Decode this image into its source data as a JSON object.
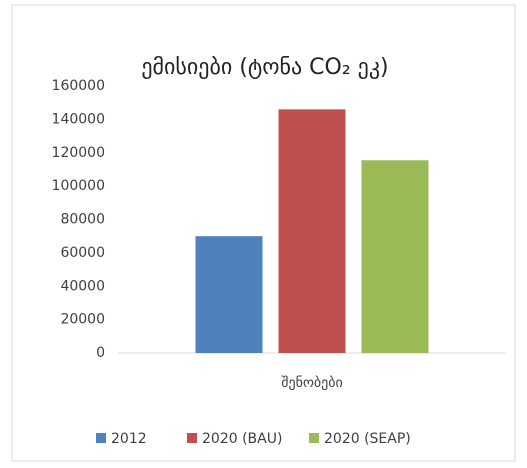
{
  "chart_data": {
    "type": "bar",
    "title": "ემისიები (ტონა CO₂ ეკ)",
    "categories": [
      "შენობები"
    ],
    "series": [
      {
        "name": "2012",
        "color": "#4f81bd",
        "values": [
          70000
        ]
      },
      {
        "name": "2020 (BAU)",
        "color": "#c0504d",
        "values": [
          146000
        ]
      },
      {
        "name": "2020 (SEAP)",
        "color": "#9bbb59",
        "values": [
          115500
        ]
      }
    ],
    "ylim": [
      0,
      160000
    ],
    "yticks": [
      0,
      20000,
      40000,
      60000,
      80000,
      100000,
      120000,
      140000,
      160000
    ],
    "grid": false,
    "legend": "bottom"
  }
}
